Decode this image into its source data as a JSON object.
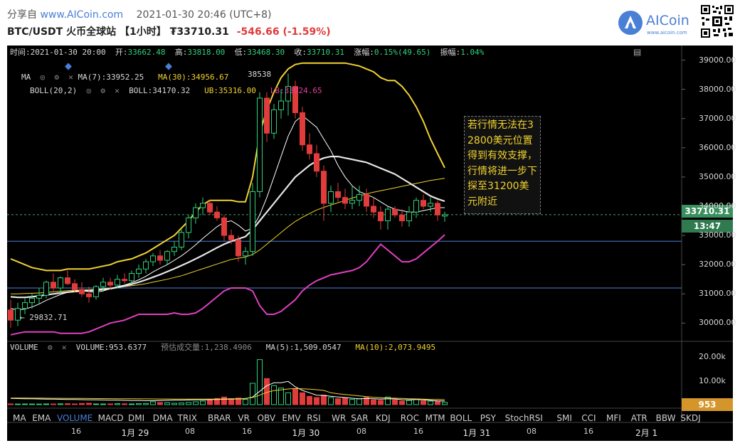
{
  "header": {
    "share_prefix": "分享自",
    "site": "www.AICoin.com",
    "datetime": "2021-01-30 20:46 (UTC+8)",
    "pair": "BTC/USDT 火币全球站",
    "interval": "【1小时】",
    "price": "₮33710.31",
    "change": "-546.66 (-1.59%)",
    "logo_text": "AICoin",
    "logo_sub": "www.aicoin.com"
  },
  "info_bar": {
    "time_label": "时间:",
    "time": "2021-01-30 20:00",
    "open_label": "开:",
    "open": "33662.48",
    "high_label": "高:",
    "high": "33818.00",
    "low_label": "低:",
    "low": "33468.30",
    "close_label": "收:",
    "close": "33710.31",
    "change_label": "涨幅:",
    "change": "0.15%(49.65)",
    "amp_label": "振幅:",
    "amp": "1.04%"
  },
  "indicators": {
    "ma_label": "MA",
    "ma7": "MA(7):33952.25",
    "ma30": "MA(30):34956.67",
    "boll_label": "BOLL(20,2)",
    "boll": "BOLL:34170.32",
    "ub": "UB:35316.00",
    "lb": "LB:33024.65",
    "high_mark": "38538",
    "low_mark": "← 29832.71"
  },
  "volume": {
    "label": "VOLUME",
    "value": "VOLUME:953.6377",
    "estimate": "预估成交量:1,238.4906",
    "ma5": "MA(5):1,509.0547",
    "ma10": "MA(10):2,073.9495",
    "tag": "953"
  },
  "annotation": "若行情无法在32800美元位置得到有效支撑，行情将进一步下探至31200美元附近",
  "price_tag": "33710.31",
  "countdown": "13:47",
  "tabs": [
    "MA",
    "EMA",
    "VOLUME",
    "MACD",
    "DMI",
    "DMA",
    "TRIX",
    "BRAR",
    "VR",
    "OBV",
    "EMV",
    "RSI",
    "WR",
    "SAR",
    "KDJ",
    "ROC",
    "MTM",
    "BOLL",
    "PSY",
    "StochRSI",
    "SMI",
    "CCI",
    "MFI",
    "ATR",
    "BBW",
    "SKDJ"
  ],
  "active_tab": "VOLUME",
  "x_axis": [
    {
      "label": "16",
      "bold": false
    },
    {
      "label": "1月 29",
      "bold": true
    },
    {
      "label": "08",
      "bold": false
    },
    {
      "label": "16",
      "bold": false
    },
    {
      "label": "1月 30",
      "bold": true
    },
    {
      "label": "08",
      "bold": false
    },
    {
      "label": "16",
      "bold": false
    },
    {
      "label": "1月 31",
      "bold": true
    },
    {
      "label": "08",
      "bold": false
    },
    {
      "label": "16",
      "bold": false
    },
    {
      "label": "2月 1",
      "bold": true
    }
  ],
  "y_axis": [
    "39000.00",
    "38000.00",
    "37000.00",
    "36000.00",
    "35000.00",
    "34000.00",
    "33000.00",
    "32000.00",
    "31000.00",
    "30000.00"
  ],
  "vol_axis": [
    "20.00k",
    "10.00k"
  ],
  "colors": {
    "up": "#2fd27a",
    "down": "#e03c3c",
    "ma7": "#ffffff",
    "ma30": "#f0d230",
    "boll_mid": "#e6e6e6",
    "ub": "#f0d230",
    "lb": "#e040c0",
    "hline": "#4a7fd6",
    "price_tag": "#3fa36a",
    "vol_tag": "#d4962a"
  },
  "chart_data": {
    "type": "candlestick",
    "symbol": "BTC/USDT",
    "interval": "1h",
    "ylim": [
      29400,
      39500
    ],
    "candles": [
      {
        "o": 30450,
        "h": 30800,
        "l": 29833,
        "c": 30100
      },
      {
        "o": 30100,
        "h": 30700,
        "l": 29900,
        "c": 30500
      },
      {
        "o": 30500,
        "h": 30850,
        "l": 30300,
        "c": 30700
      },
      {
        "o": 30700,
        "h": 31000,
        "l": 30500,
        "c": 30850
      },
      {
        "o": 30850,
        "h": 31200,
        "l": 30650,
        "c": 30950
      },
      {
        "o": 30950,
        "h": 31450,
        "l": 30850,
        "c": 31400
      },
      {
        "o": 31400,
        "h": 31700,
        "l": 31100,
        "c": 31200
      },
      {
        "o": 31200,
        "h": 31600,
        "l": 31000,
        "c": 31550
      },
      {
        "o": 31550,
        "h": 31800,
        "l": 31300,
        "c": 31350
      },
      {
        "o": 31350,
        "h": 31500,
        "l": 31050,
        "c": 31150
      },
      {
        "o": 31150,
        "h": 31400,
        "l": 30900,
        "c": 31000
      },
      {
        "o": 31000,
        "h": 31250,
        "l": 30700,
        "c": 30900
      },
      {
        "o": 30900,
        "h": 31300,
        "l": 30800,
        "c": 31250
      },
      {
        "o": 31250,
        "h": 31550,
        "l": 31100,
        "c": 31400
      },
      {
        "o": 31400,
        "h": 31550,
        "l": 31150,
        "c": 31300
      },
      {
        "o": 31300,
        "h": 31650,
        "l": 31200,
        "c": 31500
      },
      {
        "o": 31500,
        "h": 31700,
        "l": 31350,
        "c": 31450
      },
      {
        "o": 31450,
        "h": 31800,
        "l": 31350,
        "c": 31700
      },
      {
        "o": 31700,
        "h": 32000,
        "l": 31550,
        "c": 31850
      },
      {
        "o": 31850,
        "h": 32200,
        "l": 31700,
        "c": 32100
      },
      {
        "o": 32100,
        "h": 32400,
        "l": 31950,
        "c": 32300
      },
      {
        "o": 32300,
        "h": 32500,
        "l": 32000,
        "c": 32150
      },
      {
        "o": 32150,
        "h": 32500,
        "l": 32000,
        "c": 32450
      },
      {
        "o": 32450,
        "h": 32800,
        "l": 32300,
        "c": 32600
      },
      {
        "o": 32600,
        "h": 33200,
        "l": 32500,
        "c": 33100
      },
      {
        "o": 33100,
        "h": 33700,
        "l": 32900,
        "c": 33600
      },
      {
        "o": 33600,
        "h": 34100,
        "l": 33400,
        "c": 33950
      },
      {
        "o": 33950,
        "h": 34300,
        "l": 33700,
        "c": 34100
      },
      {
        "o": 34100,
        "h": 34200,
        "l": 33700,
        "c": 33800
      },
      {
        "o": 33800,
        "h": 34000,
        "l": 33500,
        "c": 33600
      },
      {
        "o": 33600,
        "h": 33700,
        "l": 32800,
        "c": 33000
      },
      {
        "o": 33000,
        "h": 33200,
        "l": 32700,
        "c": 32850
      },
      {
        "o": 32850,
        "h": 33000,
        "l": 32100,
        "c": 32300
      },
      {
        "o": 32300,
        "h": 32600,
        "l": 32000,
        "c": 32450
      },
      {
        "o": 32450,
        "h": 34800,
        "l": 32300,
        "c": 34500
      },
      {
        "o": 34500,
        "h": 37900,
        "l": 34300,
        "c": 37700
      },
      {
        "o": 37700,
        "h": 37900,
        "l": 36200,
        "c": 36500
      },
      {
        "o": 36500,
        "h": 37500,
        "l": 36300,
        "c": 37300
      },
      {
        "o": 37300,
        "h": 38000,
        "l": 37000,
        "c": 37600
      },
      {
        "o": 37600,
        "h": 38538,
        "l": 37100,
        "c": 38100
      },
      {
        "o": 38100,
        "h": 38300,
        "l": 37000,
        "c": 37200
      },
      {
        "o": 37200,
        "h": 37400,
        "l": 35900,
        "c": 36100
      },
      {
        "o": 36100,
        "h": 36500,
        "l": 35600,
        "c": 35800
      },
      {
        "o": 35800,
        "h": 36100,
        "l": 35000,
        "c": 35200
      },
      {
        "o": 35200,
        "h": 35400,
        "l": 33500,
        "c": 34100
      },
      {
        "o": 34100,
        "h": 34700,
        "l": 33800,
        "c": 34500
      },
      {
        "o": 34500,
        "h": 34800,
        "l": 34100,
        "c": 34300
      },
      {
        "o": 34300,
        "h": 34600,
        "l": 33900,
        "c": 34100
      },
      {
        "o": 34100,
        "h": 34700,
        "l": 33900,
        "c": 34200
      },
      {
        "o": 34200,
        "h": 34700,
        "l": 34000,
        "c": 34400
      },
      {
        "o": 34400,
        "h": 34600,
        "l": 33800,
        "c": 34000
      },
      {
        "o": 34000,
        "h": 34300,
        "l": 33600,
        "c": 33800
      },
      {
        "o": 33800,
        "h": 34000,
        "l": 33200,
        "c": 33500
      },
      {
        "o": 33500,
        "h": 34000,
        "l": 33200,
        "c": 33900
      },
      {
        "o": 33900,
        "h": 34000,
        "l": 33600,
        "c": 33700
      },
      {
        "o": 33700,
        "h": 33900,
        "l": 33300,
        "c": 33500
      },
      {
        "o": 33500,
        "h": 34000,
        "l": 33300,
        "c": 33800
      },
      {
        "o": 33800,
        "h": 34300,
        "l": 33600,
        "c": 34200
      },
      {
        "o": 34200,
        "h": 34400,
        "l": 33900,
        "c": 34000
      },
      {
        "o": 34000,
        "h": 34300,
        "l": 33800,
        "c": 34100
      },
      {
        "o": 34100,
        "h": 34200,
        "l": 33500,
        "c": 33700
      },
      {
        "o": 33662,
        "h": 33818,
        "l": 33468,
        "c": 33710
      }
    ],
    "ma7": [
      30500,
      30450,
      30480,
      30550,
      30650,
      30780,
      30880,
      30980,
      31050,
      31100,
      31100,
      31080,
      31050,
      31100,
      31180,
      31250,
      31300,
      31380,
      31480,
      31600,
      31750,
      31880,
      32000,
      32150,
      32300,
      32480,
      32680,
      32900,
      33100,
      33300,
      33450,
      33500,
      33350,
      33150,
      33250,
      33700,
      34300,
      35000,
      35700,
      36400,
      36900,
      37100,
      36900,
      36700,
      36300,
      35900,
      35400,
      35000,
      34700,
      34500,
      34400,
      34300,
      34150,
      34000,
      33900,
      33850,
      33800,
      33800,
      33850,
      33900,
      33950,
      33952
    ],
    "ma30": [
      31000,
      31000,
      31010,
      31020,
      31030,
      31050,
      31070,
      31090,
      31110,
      31120,
      31130,
      31140,
      31160,
      31180,
      31200,
      31220,
      31250,
      31280,
      31310,
      31350,
      31400,
      31450,
      31500,
      31560,
      31620,
      31700,
      31780,
      31860,
      31940,
      32020,
      32100,
      32180,
      32220,
      32260,
      32350,
      32500,
      32700,
      32900,
      33100,
      33300,
      33480,
      33620,
      33750,
      33870,
      33960,
      34040,
      34120,
      34200,
      34280,
      34350,
      34420,
      34480,
      34530,
      34580,
      34630,
      34680,
      34730,
      34780,
      34830,
      34880,
      34920,
      34957
    ],
    "boll_mid": [
      30900,
      30880,
      30880,
      30900,
      30930,
      30970,
      31000,
      31030,
      31060,
      31080,
      31100,
      31110,
      31120,
      31150,
      31180,
      31220,
      31270,
      31330,
      31400,
      31480,
      31570,
      31660,
      31760,
      31860,
      31970,
      32080,
      32200,
      32320,
      32450,
      32580,
      32700,
      32800,
      32880,
      32960,
      33200,
      33500,
      33800,
      34100,
      34400,
      34700,
      35000,
      35200,
      35400,
      35550,
      35650,
      35700,
      35700,
      35650,
      35600,
      35550,
      35500,
      35400,
      35300,
      35200,
      35100,
      34950,
      34800,
      34650,
      34500,
      34350,
      34250,
      34170
    ],
    "ub": [
      32200,
      32100,
      32000,
      31900,
      31850,
      31800,
      31800,
      31800,
      31850,
      31850,
      31850,
      31850,
      31900,
      31950,
      32000,
      32100,
      32150,
      32200,
      32300,
      32400,
      32550,
      32700,
      32850,
      33000,
      33250,
      33500,
      33800,
      34050,
      34200,
      34200,
      34200,
      34200,
      34150,
      34150,
      35000,
      36500,
      37300,
      37900,
      38400,
      38700,
      38850,
      38900,
      38900,
      38900,
      38900,
      38900,
      38900,
      38900,
      38850,
      38800,
      38700,
      38600,
      38400,
      38300,
      38300,
      38100,
      37800,
      37400,
      36900,
      36300,
      35800,
      35316
    ],
    "lb": [
      29600,
      29650,
      29700,
      29700,
      29700,
      29700,
      29700,
      29650,
      29650,
      29650,
      29650,
      29700,
      29800,
      29900,
      30000,
      30050,
      30100,
      30200,
      30300,
      30300,
      30300,
      30300,
      30300,
      30350,
      30300,
      30300,
      30350,
      30500,
      30700,
      30900,
      31100,
      31200,
      31200,
      31200,
      31100,
      30600,
      30300,
      30300,
      30400,
      30600,
      30800,
      31100,
      31300,
      31450,
      31550,
      31650,
      31700,
      31750,
      31800,
      31900,
      32100,
      32400,
      32700,
      32500,
      32300,
      32100,
      32100,
      32200,
      32400,
      32600,
      32800,
      33025
    ],
    "hlines": [
      32800,
      31200
    ],
    "volume": [
      300,
      250,
      280,
      260,
      240,
      300,
      280,
      350,
      400,
      300,
      500,
      600,
      300,
      280,
      320,
      400,
      350,
      300,
      420,
      500,
      1200,
      900,
      800,
      600,
      700,
      900,
      1200,
      1500,
      2000,
      2600,
      3200,
      2500,
      2800,
      2200,
      9000,
      19000,
      11000,
      8000,
      7000,
      5000,
      6500,
      5000,
      3500,
      3000,
      4000,
      3000,
      2500,
      2800,
      2200,
      2400,
      3000,
      2000,
      1800,
      3200,
      2000,
      1500,
      1800,
      2200,
      1600,
      1500,
      1400,
      954
    ],
    "vol_ma5": [
      2600,
      2550,
      2500,
      2450,
      2400,
      2350,
      2300,
      2250,
      2200,
      2150,
      2100,
      2050,
      2000,
      1950,
      1900,
      1850,
      1800,
      1750,
      1700,
      1650,
      1650,
      1700,
      1800,
      1850,
      1900,
      1950,
      2000,
      2050,
      2100,
      2150,
      2250,
      2300,
      2400,
      2500,
      3200,
      5600,
      8000,
      9200,
      9200,
      9800,
      7500,
      6000,
      5000,
      4000,
      3900,
      3500,
      3200,
      3000,
      2700,
      2500,
      2600,
      2500,
      2300,
      2500,
      2400,
      2100,
      2000,
      2200,
      2000,
      1800,
      1600,
      1509
    ],
    "vol_ma10": [
      2800,
      2780,
      2760,
      2740,
      2720,
      2700,
      2680,
      2660,
      2640,
      2620,
      2600,
      2580,
      2560,
      2540,
      2520,
      2500,
      2480,
      2460,
      2440,
      2420,
      2400,
      2380,
      2360,
      2340,
      2320,
      2300,
      2300,
      2300,
      2300,
      2350,
      2400,
      2450,
      2500,
      2600,
      3000,
      4000,
      5200,
      5900,
      6200,
      6600,
      6800,
      6700,
      6500,
      6300,
      6000,
      5000,
      4600,
      4300,
      4000,
      3700,
      3400,
      3100,
      2900,
      2800,
      2700,
      2600,
      2500,
      2400,
      2300,
      2200,
      2150,
      2074
    ],
    "vol_ylim": [
      0,
      22500
    ]
  }
}
